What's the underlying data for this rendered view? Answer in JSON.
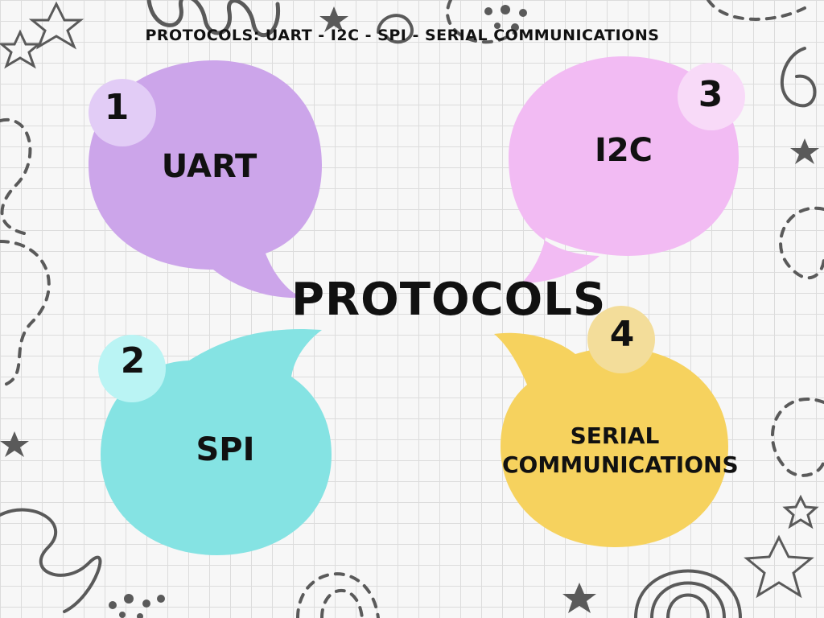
{
  "header": {
    "title": "PROTOCOLS: UART - I2C - SPI - SERIAL COMMUNICATIONS"
  },
  "center": {
    "title": "PROTOCOLS"
  },
  "bubbles": [
    {
      "number": "1",
      "label": "UART",
      "color": "#cca5ea",
      "badge_color": "#e2ccf6"
    },
    {
      "number": "2",
      "label": "SPI",
      "color": "#85e3e3",
      "badge_color": "#baf4f4"
    },
    {
      "number": "3",
      "label": "I2C",
      "color": "#f2bbf3",
      "badge_color": "#f8daf8"
    },
    {
      "number": "4",
      "label": "SERIAL COMMUNICATIONS",
      "color": "#f6d25e",
      "badge_color": "#f3dd9a"
    }
  ],
  "colors": {
    "background": "#f7f7f7",
    "grid": "#dcdcdc",
    "doodle": "#5a5a5a",
    "text": "#111111"
  }
}
